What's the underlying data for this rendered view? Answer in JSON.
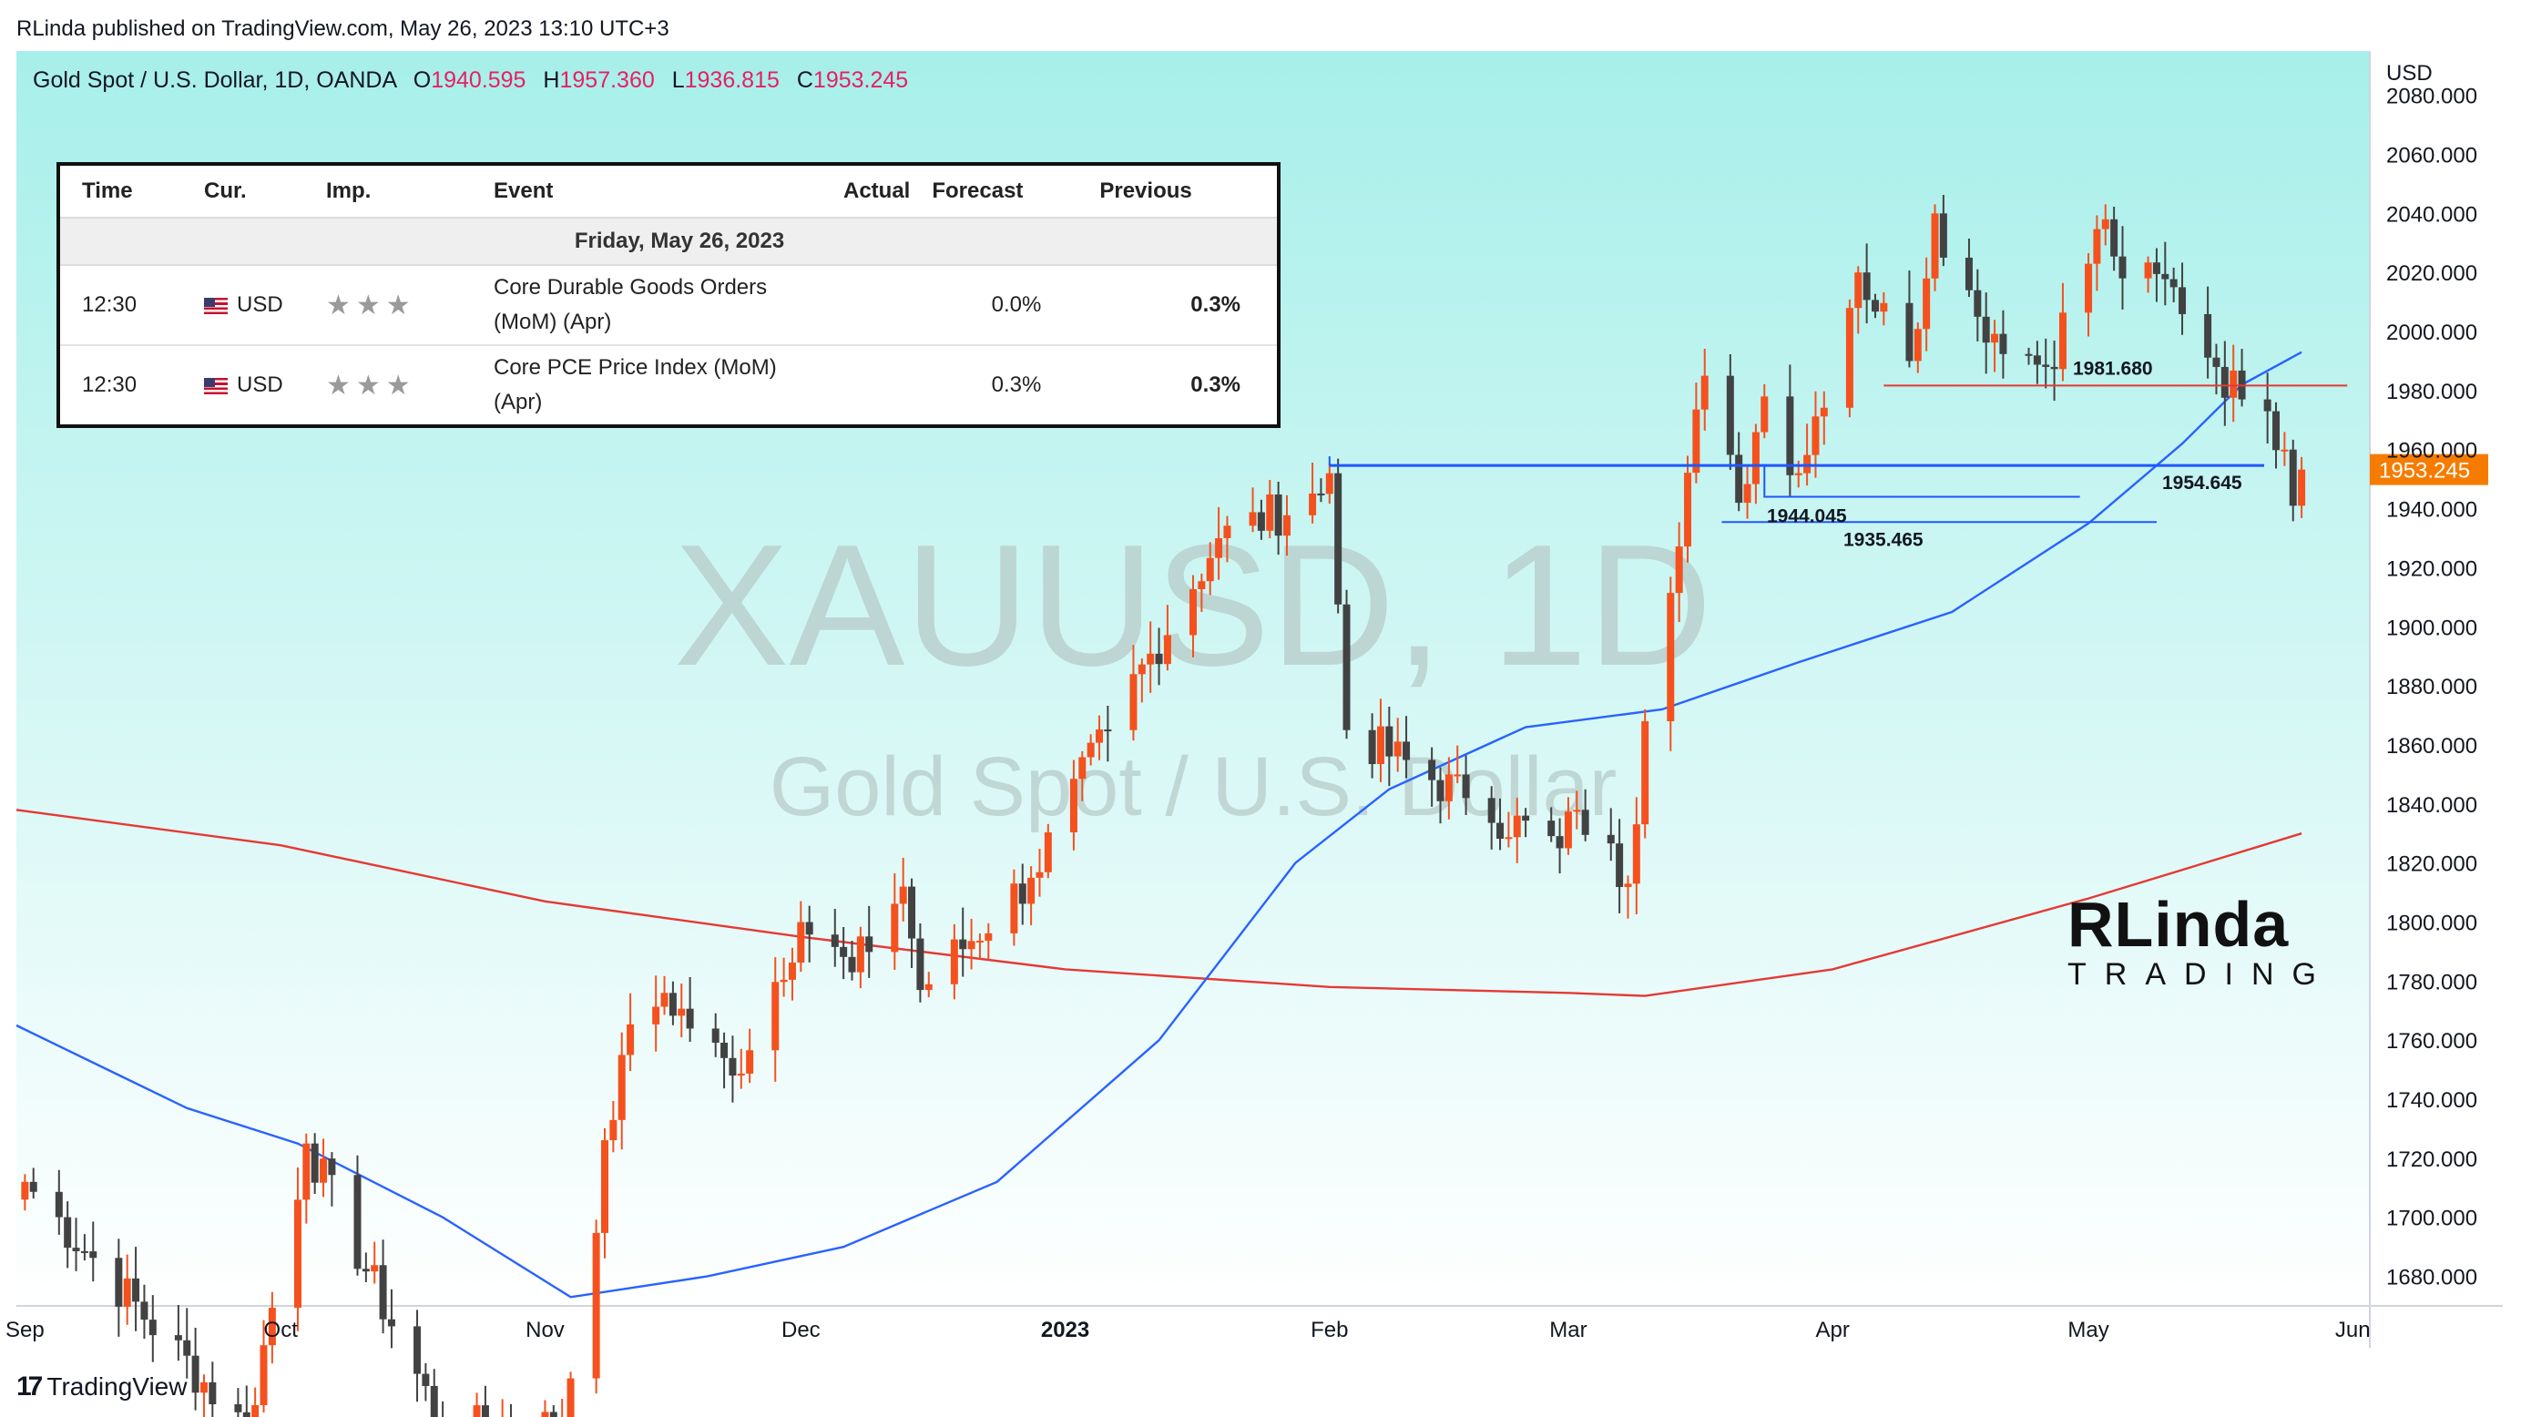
{
  "header": {
    "published": "RLinda published on TradingView.com, May 26, 2023 13:10 UTC+3"
  },
  "legend": {
    "symbol": "Gold Spot / U.S. Dollar, 1D, OANDA",
    "o_label": "O",
    "o_value": "1940.595",
    "h_label": "H",
    "h_value": "1957.360",
    "l_label": "L",
    "l_value": "1936.815",
    "c_label": "C",
    "c_value": "1953.245"
  },
  "calendar": {
    "headers": [
      "Time",
      "Cur.",
      "Imp.",
      "Event",
      "Actual",
      "Forecast",
      "Previous"
    ],
    "date": "Friday, May 26, 2023",
    "rows": [
      {
        "time": "12:30",
        "currency": "USD",
        "importance": "★★★",
        "event": "Core Durable Goods Orders (MoM) (Apr)",
        "actual": "",
        "forecast": "0.0%",
        "previous": "0.3%"
      },
      {
        "time": "12:30",
        "currency": "USD",
        "importance": "★★★",
        "event": "Core PCE Price Index (MoM) (Apr)",
        "actual": "",
        "forecast": "0.3%",
        "previous": "0.3%"
      }
    ]
  },
  "watermark": {
    "line1": "XAUUSD, 1D",
    "line2": "Gold Spot / U.S. Dollar"
  },
  "brand": {
    "line1": "RLinda",
    "line2": "TRADING"
  },
  "footer": {
    "brand": "TradingView"
  },
  "colors": {
    "background_top": "#a7efea",
    "background_bottom": "#ffffff",
    "up": "#f4511e",
    "down": "#424242",
    "ma_fast": "#2962ff",
    "ma_slow": "#e53935",
    "level": "#1e56ff",
    "resistance": "#e53935",
    "price_badge": "#f57c00"
  },
  "chart_data": {
    "type": "candlestick",
    "title": "Gold Spot / U.S. Dollar, 1D, OANDA",
    "currency_label": "USD",
    "ylim": [
      1670,
      2095
    ],
    "y_ticks": [
      "2080.000",
      "2060.000",
      "2040.000",
      "2020.000",
      "2000.000",
      "1980.000",
      "1960.000",
      "1940.000",
      "1920.000",
      "1900.000",
      "1880.000",
      "1860.000",
      "1840.000",
      "1820.000",
      "1800.000",
      "1780.000",
      "1760.000",
      "1740.000",
      "1720.000",
      "1700.000",
      "1680.000"
    ],
    "x_labels": [
      "Sep",
      "Oct",
      "Nov",
      "Dec",
      "2023",
      "Feb",
      "Mar",
      "Apr",
      "May",
      "Jun"
    ],
    "last_price": "1953.245",
    "levels": [
      {
        "label": "1954.645",
        "value": 1954.645
      },
      {
        "label": "1944.045",
        "value": 1944.045
      },
      {
        "label": "1935.465",
        "value": 1935.465
      },
      {
        "label": "1981.680",
        "value": 1981.68
      }
    ],
    "anchors": [
      {
        "date": "2022-09-01",
        "price": 1712
      },
      {
        "date": "2022-09-27",
        "price": 1628
      },
      {
        "date": "2022-10-04",
        "price": 1725
      },
      {
        "date": "2022-10-20",
        "price": 1628
      },
      {
        "date": "2022-11-03",
        "price": 1630
      },
      {
        "date": "2022-11-10",
        "price": 1755
      },
      {
        "date": "2022-11-15",
        "price": 1776
      },
      {
        "date": "2022-11-23",
        "price": 1748
      },
      {
        "date": "2022-12-01",
        "price": 1800
      },
      {
        "date": "2022-12-07",
        "price": 1783
      },
      {
        "date": "2022-12-13",
        "price": 1812
      },
      {
        "date": "2022-12-15",
        "price": 1777
      },
      {
        "date": "2022-12-28",
        "price": 1815
      },
      {
        "date": "2023-01-06",
        "price": 1865
      },
      {
        "date": "2023-01-19",
        "price": 1930
      },
      {
        "date": "2023-01-31",
        "price": 1945
      },
      {
        "date": "2023-02-01",
        "price": 1952
      },
      {
        "date": "2023-02-03",
        "price": 1865
      },
      {
        "date": "2023-02-17",
        "price": 1842
      },
      {
        "date": "2023-02-28",
        "price": 1825
      },
      {
        "date": "2023-03-02",
        "price": 1838
      },
      {
        "date": "2023-03-08",
        "price": 1813
      },
      {
        "date": "2023-03-10",
        "price": 1868
      },
      {
        "date": "2023-03-17",
        "price": 1985
      },
      {
        "date": "2023-03-21",
        "price": 1942
      },
      {
        "date": "2023-03-24",
        "price": 1978
      },
      {
        "date": "2023-03-28",
        "price": 1952
      },
      {
        "date": "2023-04-04",
        "price": 2020
      },
      {
        "date": "2023-04-10",
        "price": 1990
      },
      {
        "date": "2023-04-13",
        "price": 2040
      },
      {
        "date": "2023-04-18",
        "price": 2005
      },
      {
        "date": "2023-04-26",
        "price": 1988
      },
      {
        "date": "2023-05-03",
        "price": 2038
      },
      {
        "date": "2023-05-05",
        "price": 2018
      },
      {
        "date": "2023-05-11",
        "price": 2015
      },
      {
        "date": "2023-05-16",
        "price": 1988
      },
      {
        "date": "2023-05-19",
        "price": 1977
      },
      {
        "date": "2023-05-22",
        "price": 1973
      },
      {
        "date": "2023-05-24",
        "price": 1960
      },
      {
        "date": "2023-05-25",
        "price": 1941
      },
      {
        "date": "2023-05-26",
        "price": 1953.245
      }
    ],
    "ma_fast": [
      {
        "date": "2022-08-31",
        "price": 1765
      },
      {
        "date": "2022-09-20",
        "price": 1737
      },
      {
        "date": "2022-10-03",
        "price": 1725
      },
      {
        "date": "2022-10-20",
        "price": 1700
      },
      {
        "date": "2022-11-04",
        "price": 1673
      },
      {
        "date": "2022-11-20",
        "price": 1680
      },
      {
        "date": "2022-12-06",
        "price": 1690
      },
      {
        "date": "2022-12-24",
        "price": 1712
      },
      {
        "date": "2023-01-12",
        "price": 1760
      },
      {
        "date": "2023-01-28",
        "price": 1820
      },
      {
        "date": "2023-02-08",
        "price": 1845
      },
      {
        "date": "2023-02-24",
        "price": 1866
      },
      {
        "date": "2023-03-12",
        "price": 1872
      },
      {
        "date": "2023-03-28",
        "price": 1888
      },
      {
        "date": "2023-04-15",
        "price": 1905
      },
      {
        "date": "2023-05-01",
        "price": 1935
      },
      {
        "date": "2023-05-12",
        "price": 1962
      },
      {
        "date": "2023-05-19",
        "price": 1982
      },
      {
        "date": "2023-05-26",
        "price": 1993
      }
    ],
    "ma_slow": [
      {
        "date": "2022-08-31",
        "price": 1838
      },
      {
        "date": "2022-10-01",
        "price": 1826
      },
      {
        "date": "2022-11-01",
        "price": 1807
      },
      {
        "date": "2022-12-01",
        "price": 1795
      },
      {
        "date": "2023-01-01",
        "price": 1784
      },
      {
        "date": "2023-02-01",
        "price": 1778
      },
      {
        "date": "2023-03-01",
        "price": 1776
      },
      {
        "date": "2023-03-10",
        "price": 1775
      },
      {
        "date": "2023-04-01",
        "price": 1784
      },
      {
        "date": "2023-05-01",
        "price": 1808
      },
      {
        "date": "2023-05-26",
        "price": 1830
      }
    ]
  }
}
